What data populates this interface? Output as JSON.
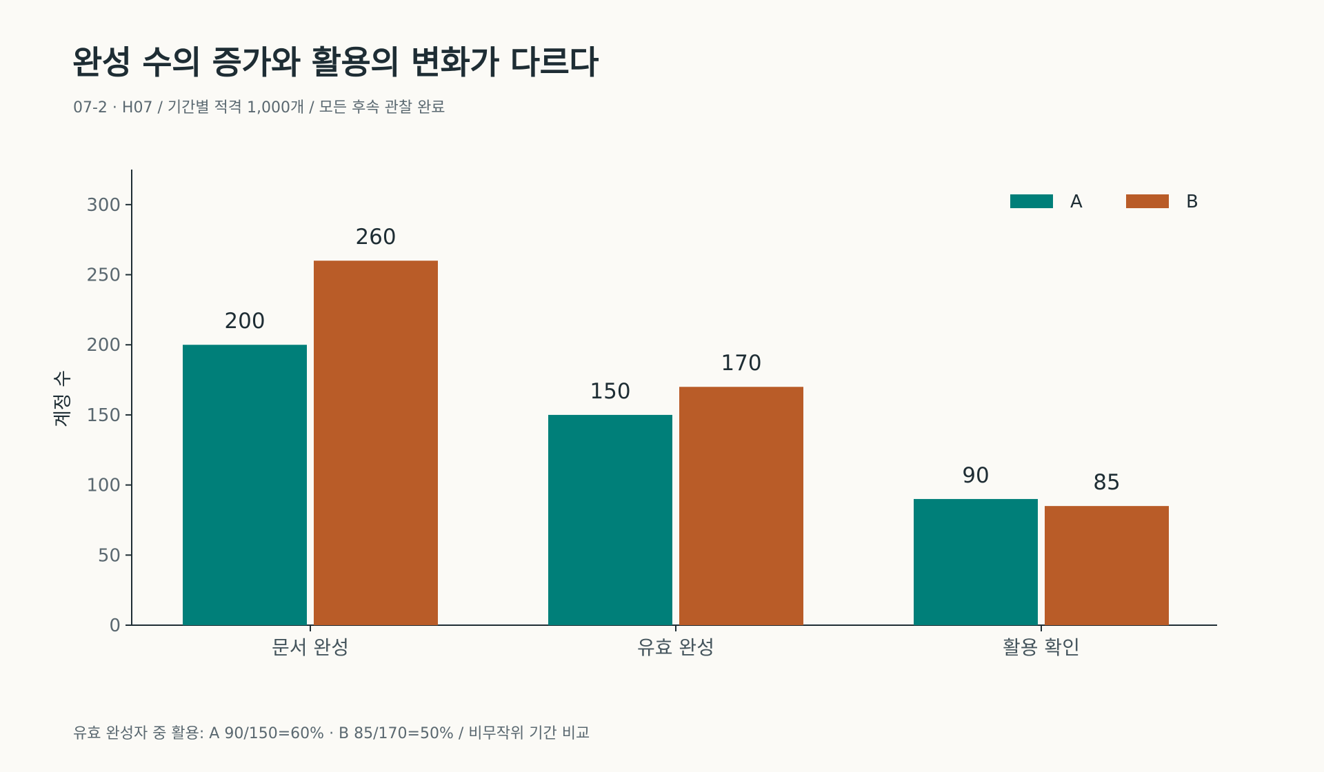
{
  "title": "완성 수의 증가와 활용의 변화가 다르다",
  "subtitle": "07-2 · H07 / 기간별 적격 1,000개 / 모든 후속 관찰 완료",
  "footnote": "유효 완성자 중 활용: A 90/150=60% · B 85/170=50% / 비무작위 기간 비교",
  "colors": {
    "A": "#007f79",
    "B": "#b95c28",
    "axis": "#1e2d34",
    "background": "#fbfaf6"
  },
  "chart_data": {
    "type": "bar",
    "categories": [
      "문서 완성",
      "유효 완성",
      "활용 확인"
    ],
    "series": [
      {
        "name": "A",
        "values": [
          200,
          150,
          90
        ],
        "color": "#007f79"
      },
      {
        "name": "B",
        "values": [
          260,
          170,
          85
        ],
        "color": "#b95c28"
      }
    ],
    "ylabel": "계정 수",
    "xlabel": "",
    "ylim": [
      0,
      325
    ],
    "yticks": [
      0,
      50,
      100,
      150,
      200,
      250,
      300
    ],
    "legend_position": "top-right",
    "grid": false,
    "data_labels": true
  }
}
